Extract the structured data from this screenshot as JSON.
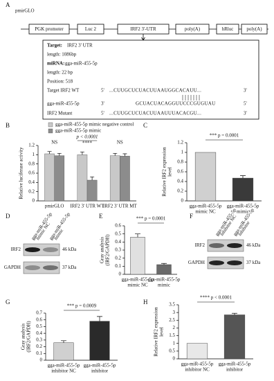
{
  "panel_labels": [
    "A",
    "B",
    "C",
    "D",
    "E",
    "F",
    "G",
    "H"
  ],
  "construct": {
    "title": "pmirGLO",
    "elements": [
      "PGK promoter",
      "Luc 2",
      "IRF2 3'-UTR",
      "poly(A)",
      "hRluc",
      "poly(A)"
    ]
  },
  "target_info": {
    "target_label": "Target:",
    "target": "IRF2 3' UTR",
    "length": "length: 1086bp",
    "mirna_label": "miRNA:",
    "mirna": "gga-miR-455-5p",
    "mirna_length": "length: 22 bp",
    "position": "Position: 518",
    "rows": [
      {
        "label": "Target IRF2 WT",
        "start": "5'",
        "sequence": "...CUUGCUCUACUUAAUGGCACAUU...",
        "end": "3'"
      },
      {
        "label": "gga-miR-455-5p",
        "start": "3'",
        "sequence": "GCUACUACAGGUUCCCGUGUAU",
        "end": "5'"
      },
      {
        "label": "IRF2 Mutant",
        "start": "5'",
        "sequence": "...CUUGCUCUACUUAAUUUACACGU...",
        "end": "3'"
      }
    ]
  },
  "blots": [
    {
      "lanes": [
        [
          "gga-miR-455-5p",
          "mimic NC"
        ],
        [
          "gga-miR-455-5p",
          "mimic"
        ]
      ],
      "rows": [
        {
          "label": "IRF2",
          "size": "46 kDa"
        },
        {
          "label": "GAPDH",
          "size": "37 kDa"
        }
      ]
    },
    {
      "lanes": [
        [
          "gga-miR-455-5p",
          "inhibitor NC"
        ],
        [
          "gga-miR-455-5p",
          "inhibitor"
        ]
      ],
      "rows": [
        {
          "label": "IRF2",
          "size": "46 kDa"
        },
        {
          "label": "GAPDH",
          "size": "37 kDa"
        }
      ]
    }
  ],
  "chart_data": [
    {
      "type": "bar",
      "categories": [
        [
          "pmirGLO"
        ],
        [
          "IRF2 3' UTR WT"
        ],
        [
          "IRF2 3' UTR MT"
        ]
      ],
      "ylabel": [
        "Relative luciferase activity"
      ],
      "ylim": [
        0,
        1.2
      ],
      "yticks": [
        0,
        0.2,
        0.4,
        0.6,
        0.8,
        1,
        1.2
      ],
      "series": [
        {
          "name": "gga-miR-455-5p mimic negative control",
          "color": "#c8c8c8",
          "values": [
            1.02,
            1.0,
            0.98
          ],
          "errors": [
            0.05,
            0.06,
            0.05
          ]
        },
        {
          "name": "gga-miR-455-5p mimic",
          "color": "#8c8c8c",
          "values": [
            0.98,
            0.45,
            0.97
          ],
          "errors": [
            0.05,
            0.07,
            0.05
          ]
        }
      ],
      "annotations": [
        "NS",
        "p < 0.0001",
        "****",
        "NS"
      ]
    },
    {
      "type": "bar",
      "categories": [
        [
          "gga-miR-455-5p",
          "mimic NC"
        ],
        [
          "gga-miR-455-5p",
          "mimic"
        ]
      ],
      "ylabel": [
        "Relative IRF2 expression",
        "level"
      ],
      "ylim": [
        0,
        1.2
      ],
      "yticks": [
        0,
        0.2,
        0.4,
        0.6,
        0.8,
        1,
        1.2
      ],
      "values": [
        1,
        0.47
      ],
      "errors": [
        null,
        0.05
      ],
      "colors": [
        "#d0d0d0",
        "#3a3a3a"
      ],
      "annotations": [
        "*** p = 0.0001"
      ]
    },
    {
      "type": "bar",
      "categories": [
        [
          "gga-miR-455-5p",
          "mimic NC"
        ],
        [
          "gga-miR-455-5p",
          "mimic"
        ]
      ],
      "ylabel": [
        "Gray analysis",
        "(IRF2/GAPDH)"
      ],
      "ylim": [
        0,
        0.6
      ],
      "yticks": [
        0,
        0.1,
        0.2,
        0.3,
        0.4,
        0.5,
        0.6
      ],
      "values": [
        0.46,
        0.12
      ],
      "errors": [
        0.04,
        0.015
      ],
      "colors": [
        "#e0e0e0",
        "#6a6a6a"
      ],
      "annotations": [
        "*** p = 0.0001"
      ]
    },
    {
      "type": "bar",
      "categories": [
        [
          "gga-miR-455-5p",
          "inhibitor NC"
        ],
        [
          "gga-miR-455-5p",
          "inhibitor"
        ]
      ],
      "ylabel": [
        "Gray analysis",
        "(IRF2/GAPDH)"
      ],
      "ylim": [
        0,
        0.7
      ],
      "yticks": [
        0,
        0.1,
        0.2,
        0.3,
        0.4,
        0.5,
        0.6,
        0.7
      ],
      "values": [
        0.26,
        0.58
      ],
      "errors": [
        0.03,
        0.07
      ],
      "colors": [
        "#d0d0d0",
        "#2a2a2a"
      ],
      "annotations": [
        "*** p = 0.0009"
      ]
    },
    {
      "type": "bar",
      "categories": [
        [
          "gga-miR-455-5p",
          "inhibitor NC"
        ],
        [
          "gga-miR-455-5p",
          "inhibitor"
        ]
      ],
      "ylabel": [
        "Relative IRF2 expression",
        "level"
      ],
      "ylim": [
        0,
        3.5
      ],
      "yticks": [
        0,
        0.5,
        1,
        1.5,
        2,
        2.5,
        3,
        3.5
      ],
      "values": [
        1,
        2.85
      ],
      "errors": [
        null,
        0.1
      ],
      "colors": [
        "#e8e8e8",
        "#555555"
      ],
      "annotations": [
        "**** p < 0.0001"
      ]
    }
  ]
}
